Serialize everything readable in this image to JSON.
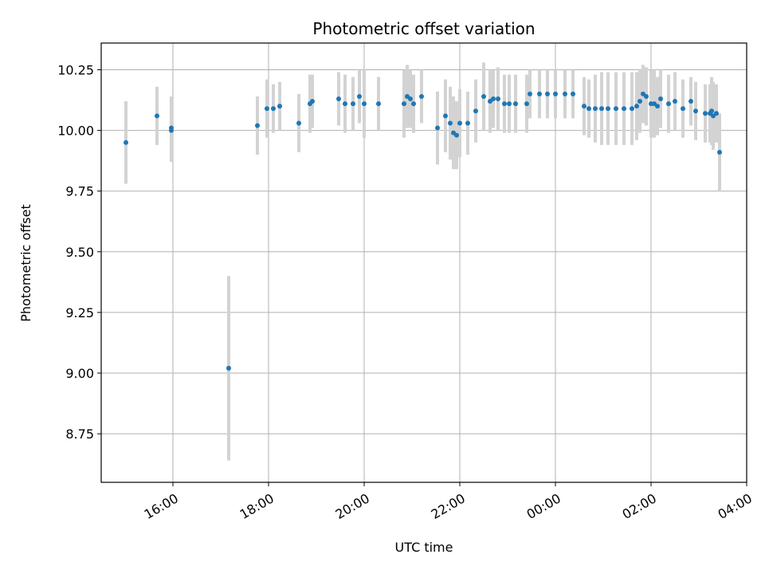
{
  "chart_data": {
    "type": "scatter",
    "title": "Photometric offset variation",
    "xlabel": "UTC time",
    "ylabel": "Photometric offset",
    "x_unit": "hours since 00:00 UTC of first night",
    "xlim": [
      "14:30",
      "04:00"
    ],
    "ylim": [
      8.55,
      10.36
    ],
    "x_ticks": [
      "16:00",
      "18:00",
      "20:00",
      "22:00",
      "00:00",
      "02:00",
      "04:00"
    ],
    "y_ticks": [
      "8.75",
      "9.00",
      "9.25",
      "9.50",
      "9.75",
      "10.00",
      "10.25"
    ],
    "grid": true,
    "marker_color": "#1f77b4",
    "errorbar_color": "#d3d3d3",
    "points": [
      [
        "15:01",
        9.95,
        0.17
      ],
      [
        "15:40",
        10.06,
        0.12
      ],
      [
        "15:58",
        10.01,
        0.13
      ],
      [
        "15:58",
        10.0,
        0.13
      ],
      [
        "17:10",
        9.02,
        0.38
      ],
      [
        "17:46",
        10.02,
        0.12
      ],
      [
        "17:58",
        10.09,
        0.12
      ],
      [
        "18:06",
        10.09,
        0.1
      ],
      [
        "18:14",
        10.1,
        0.1
      ],
      [
        "18:38",
        10.03,
        0.12
      ],
      [
        "18:52",
        10.11,
        0.12
      ],
      [
        "18:55",
        10.12,
        0.11
      ],
      [
        "19:28",
        10.13,
        0.11
      ],
      [
        "19:36",
        10.11,
        0.12
      ],
      [
        "19:46",
        10.11,
        0.11
      ],
      [
        "19:54",
        10.14,
        0.11
      ],
      [
        "20:00",
        10.11,
        0.14
      ],
      [
        "20:18",
        10.11,
        0.11
      ],
      [
        "20:50",
        10.11,
        0.14
      ],
      [
        "20:54",
        10.14,
        0.13
      ],
      [
        "20:58",
        10.13,
        0.12
      ],
      [
        "21:02",
        10.11,
        0.12
      ],
      [
        "21:12",
        10.14,
        0.11
      ],
      [
        "21:32",
        10.01,
        0.15
      ],
      [
        "21:42",
        10.06,
        0.15
      ],
      [
        "21:48",
        10.03,
        0.15
      ],
      [
        "21:52",
        9.99,
        0.15
      ],
      [
        "21:56",
        9.98,
        0.14
      ],
      [
        "22:00",
        10.03,
        0.14
      ],
      [
        "22:10",
        10.03,
        0.13
      ],
      [
        "22:20",
        10.08,
        0.13
      ],
      [
        "22:30",
        10.14,
        0.14
      ],
      [
        "22:38",
        10.12,
        0.13
      ],
      [
        "22:42",
        10.13,
        0.12
      ],
      [
        "22:48",
        10.13,
        0.13
      ],
      [
        "22:56",
        10.11,
        0.12
      ],
      [
        "23:02",
        10.11,
        0.12
      ],
      [
        "23:10",
        10.11,
        0.12
      ],
      [
        "23:24",
        10.11,
        0.12
      ],
      [
        "23:28",
        10.15,
        0.1
      ],
      [
        "23:40",
        10.15,
        0.1
      ],
      [
        "23:50",
        10.15,
        0.1
      ],
      [
        "00:00",
        10.15,
        0.1
      ],
      [
        "00:12",
        10.15,
        0.1
      ],
      [
        "00:22",
        10.15,
        0.1
      ],
      [
        "00:36",
        10.1,
        0.12
      ],
      [
        "00:42",
        10.09,
        0.12
      ],
      [
        "00:50",
        10.09,
        0.14
      ],
      [
        "00:58",
        10.09,
        0.15
      ],
      [
        "01:06",
        10.09,
        0.15
      ],
      [
        "01:16",
        10.09,
        0.15
      ],
      [
        "01:26",
        10.09,
        0.15
      ],
      [
        "01:36",
        10.09,
        0.15
      ],
      [
        "01:42",
        10.1,
        0.14
      ],
      [
        "01:46",
        10.12,
        0.13
      ],
      [
        "01:50",
        10.15,
        0.12
      ],
      [
        "01:54",
        10.14,
        0.12
      ],
      [
        "02:00",
        10.11,
        0.14
      ],
      [
        "02:04",
        10.11,
        0.14
      ],
      [
        "02:08",
        10.1,
        0.12
      ],
      [
        "02:12",
        10.13,
        0.12
      ],
      [
        "02:22",
        10.11,
        0.12
      ],
      [
        "02:30",
        10.12,
        0.12
      ],
      [
        "02:40",
        10.09,
        0.12
      ],
      [
        "02:50",
        10.12,
        0.1
      ],
      [
        "02:56",
        10.08,
        0.12
      ],
      [
        "03:08",
        10.07,
        0.12
      ],
      [
        "03:14",
        10.07,
        0.12
      ],
      [
        "03:16",
        10.08,
        0.14
      ],
      [
        "03:18",
        10.06,
        0.14
      ],
      [
        "03:22",
        10.07,
        0.12
      ],
      [
        "03:26",
        9.91,
        0.16
      ]
    ]
  }
}
